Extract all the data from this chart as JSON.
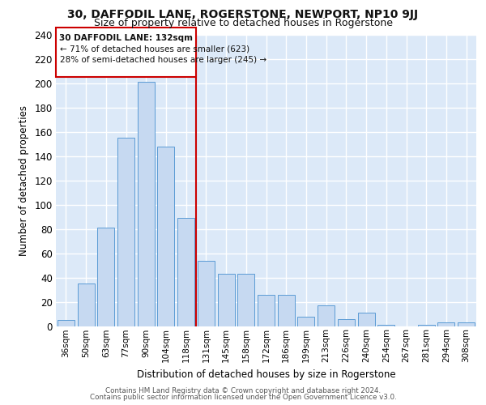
{
  "title": "30, DAFFODIL LANE, ROGERSTONE, NEWPORT, NP10 9JJ",
  "subtitle": "Size of property relative to detached houses in Rogerstone",
  "xlabel": "Distribution of detached houses by size in Rogerstone",
  "ylabel": "Number of detached properties",
  "categories": [
    "36sqm",
    "50sqm",
    "63sqm",
    "77sqm",
    "90sqm",
    "104sqm",
    "118sqm",
    "131sqm",
    "145sqm",
    "158sqm",
    "172sqm",
    "186sqm",
    "199sqm",
    "213sqm",
    "226sqm",
    "240sqm",
    "254sqm",
    "267sqm",
    "281sqm",
    "294sqm",
    "308sqm"
  ],
  "bar_values": [
    5,
    35,
    81,
    155,
    201,
    148,
    89,
    54,
    43,
    43,
    26,
    26,
    8,
    17,
    6,
    11,
    1,
    0,
    1,
    3,
    3
  ],
  "bar_color": "#c6d9f1",
  "bar_edge_color": "#5b9bd5",
  "vline_color": "#cc0000",
  "annotation_title": "30 DAFFODIL LANE: 132sqm",
  "annotation_line1": "← 71% of detached houses are smaller (623)",
  "annotation_line2": "28% of semi-detached houses are larger (245) →",
  "ylim": [
    0,
    240
  ],
  "yticks": [
    0,
    20,
    40,
    60,
    80,
    100,
    120,
    140,
    160,
    180,
    200,
    220,
    240
  ],
  "footer_line1": "Contains HM Land Registry data © Crown copyright and database right 2024.",
  "footer_line2": "Contains public sector information licensed under the Open Government Licence v3.0.",
  "bg_color": "#dce9f8",
  "grid_color": "#ffffff"
}
